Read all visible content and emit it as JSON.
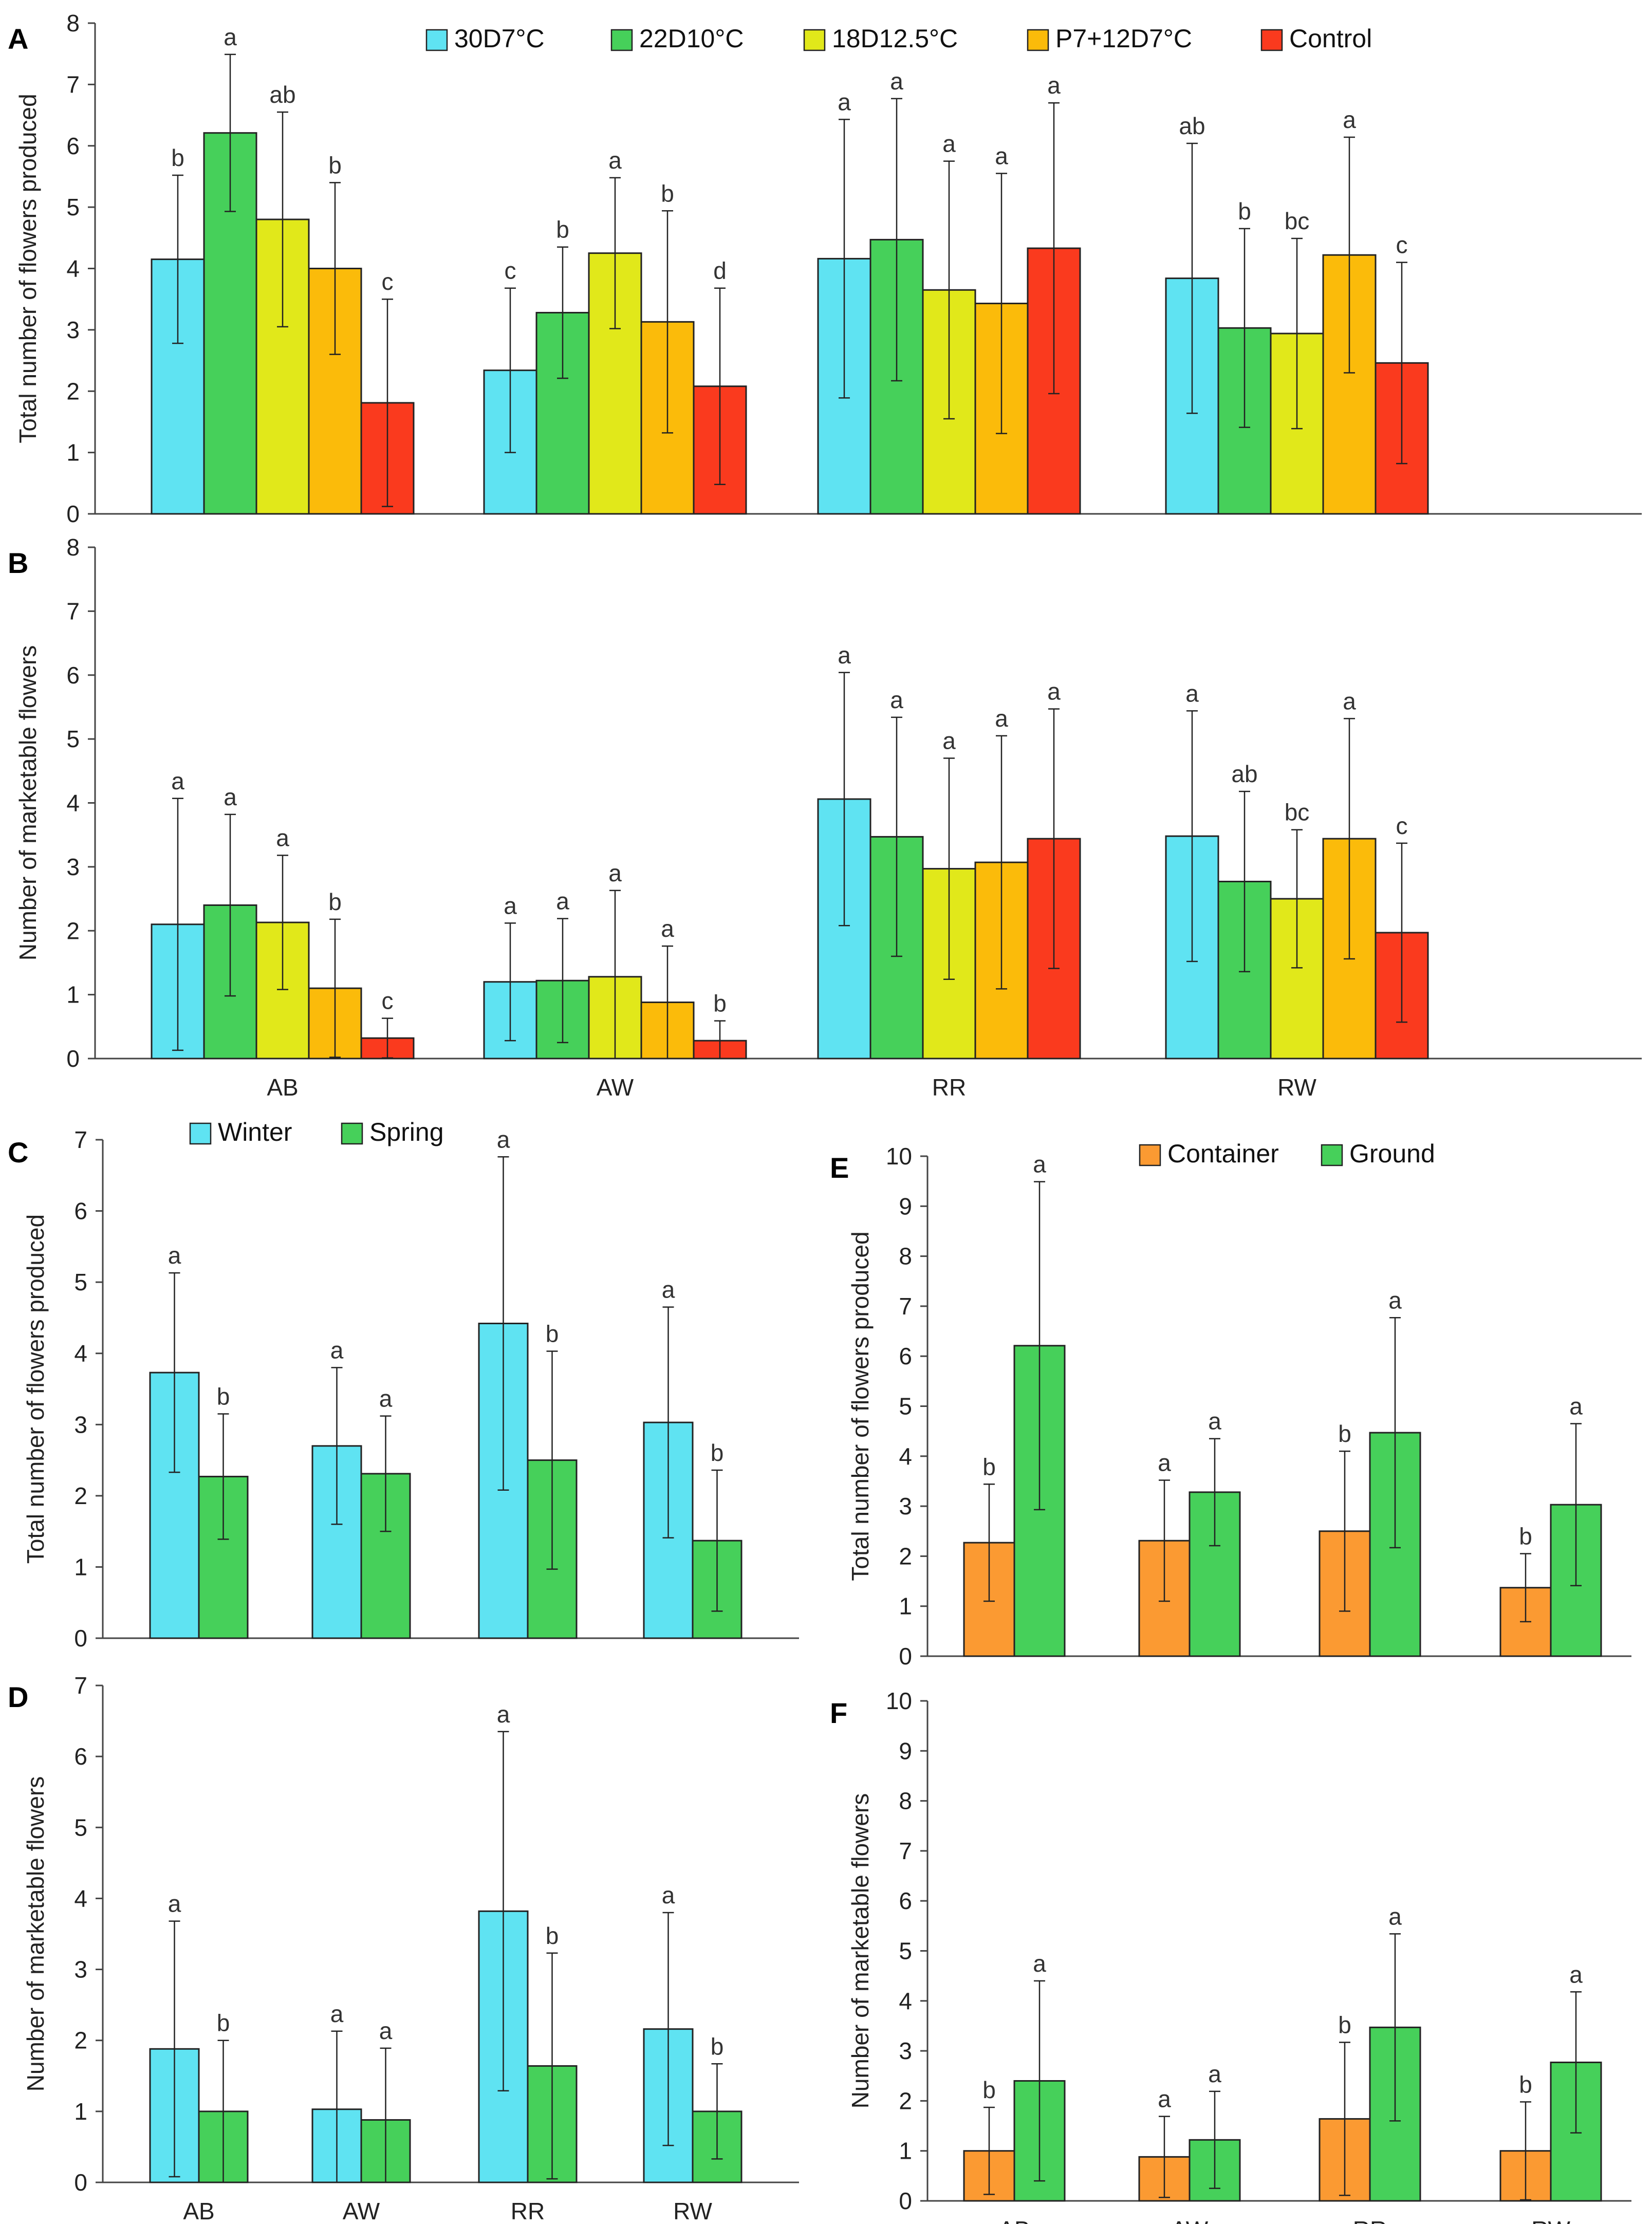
{
  "colors": {
    "30D7": "#5fe3f2",
    "22D10": "#46d05a",
    "18D12.5": "#e1e81a",
    "P7+12D7": "#fbbb0a",
    "Control": "#fa3a1e",
    "Winter": "#5fe3f2",
    "Spring": "#46d05a",
    "Container": "#fb9a32",
    "Ground": "#46d05a"
  },
  "chart_data": [
    {
      "panel": "A",
      "type": "bar",
      "ylabel": "Total number of flowers produced",
      "ylim": [
        0,
        8
      ],
      "yticks": [
        "0",
        "1",
        "2",
        "3",
        "4",
        "5",
        "6",
        "7",
        "8"
      ],
      "categories": [
        "AB",
        "AW",
        "RR",
        "RW"
      ],
      "show_xticklabels": false,
      "legend": "top",
      "series": [
        {
          "name": "30D7°C",
          "key": "30D7",
          "values": [
            4.15,
            2.34,
            4.16,
            3.84
          ],
          "err": [
            1.37,
            1.34,
            2.27,
            2.2
          ],
          "letters": [
            "b",
            "c",
            "a",
            "ab"
          ]
        },
        {
          "name": "22D10°C",
          "key": "22D10",
          "values": [
            6.21,
            3.28,
            4.47,
            3.03
          ],
          "err": [
            1.28,
            1.07,
            2.3,
            1.62
          ],
          "letters": [
            "a",
            "b",
            "a",
            "b"
          ]
        },
        {
          "name": "18D12.5°C",
          "key": "18D12.5",
          "values": [
            4.8,
            4.25,
            3.65,
            2.94
          ],
          "err": [
            1.75,
            1.23,
            2.1,
            1.55
          ],
          "letters": [
            "ab",
            "a",
            "a",
            "bc"
          ]
        },
        {
          "name": "P7+12D7°C",
          "key": "P7+12D7",
          "values": [
            4.0,
            3.13,
            3.43,
            4.22
          ],
          "err": [
            1.4,
            1.81,
            2.12,
            1.92
          ],
          "letters": [
            "b",
            "b",
            "a",
            "a"
          ]
        },
        {
          "name": "Control",
          "key": "Control",
          "values": [
            1.81,
            2.08,
            4.33,
            2.46
          ],
          "err": [
            1.69,
            1.6,
            2.37,
            1.64
          ],
          "letters": [
            "c",
            "d",
            "a",
            "c"
          ]
        }
      ]
    },
    {
      "panel": "B",
      "type": "bar",
      "ylabel": "Number of marketable flowers",
      "ylim": [
        0,
        8
      ],
      "yticks": [
        "0",
        "1",
        "2",
        "3",
        "4",
        "5",
        "6",
        "7",
        "8"
      ],
      "categories": [
        "AB",
        "AW",
        "RR",
        "RW"
      ],
      "show_xticklabels": true,
      "legend": "none",
      "series": [
        {
          "name": "30D7°C",
          "key": "30D7",
          "values": [
            2.1,
            1.2,
            4.06,
            3.48
          ],
          "err": [
            1.97,
            0.92,
            1.98,
            1.96
          ],
          "letters": [
            "a",
            "a",
            "a",
            "a"
          ]
        },
        {
          "name": "22D10°C",
          "key": "22D10",
          "values": [
            2.4,
            1.22,
            3.47,
            2.77
          ],
          "err": [
            1.42,
            0.97,
            1.87,
            1.41
          ],
          "letters": [
            "a",
            "a",
            "a",
            "ab"
          ]
        },
        {
          "name": "18D12.5°C",
          "key": "18D12.5",
          "values": [
            2.13,
            1.28,
            2.97,
            2.5
          ],
          "err": [
            1.05,
            1.35,
            1.73,
            1.08
          ],
          "letters": [
            "a",
            "a",
            "a",
            "bc"
          ]
        },
        {
          "name": "P7+12D7°C",
          "key": "P7+12D7",
          "values": [
            1.1,
            0.88,
            3.07,
            3.44
          ],
          "err": [
            1.08,
            0.88,
            1.98,
            1.88
          ],
          "letters": [
            "b",
            "a",
            "a",
            "a"
          ]
        },
        {
          "name": "Control",
          "key": "Control",
          "values": [
            0.32,
            0.28,
            3.44,
            1.97
          ],
          "err": [
            0.31,
            0.31,
            2.03,
            1.4
          ],
          "letters": [
            "c",
            "b",
            "a",
            "c"
          ]
        }
      ]
    },
    {
      "panel": "C",
      "type": "bar",
      "ylabel": "Total number of flowers produced",
      "ylim": [
        0,
        7
      ],
      "yticks": [
        "0",
        "1",
        "2",
        "3",
        "4",
        "5",
        "6",
        "7"
      ],
      "categories": [
        "AB",
        "AW",
        "RR",
        "RW"
      ],
      "show_xticklabels": false,
      "legend": "top",
      "series": [
        {
          "name": "Winter",
          "key": "Winter",
          "values": [
            3.73,
            2.7,
            4.42,
            3.03
          ],
          "err": [
            1.4,
            1.1,
            2.34,
            1.62
          ],
          "letters": [
            "a",
            "a",
            "a",
            "a"
          ]
        },
        {
          "name": "Spring",
          "key": "Spring",
          "values": [
            2.27,
            2.31,
            2.5,
            1.37
          ],
          "err": [
            0.88,
            0.81,
            1.53,
            0.99
          ],
          "letters": [
            "b",
            "a",
            "b",
            "b"
          ]
        }
      ]
    },
    {
      "panel": "D",
      "type": "bar",
      "ylabel": "Number of marketable flowers",
      "ylim": [
        0,
        7
      ],
      "yticks": [
        "0",
        "1",
        "2",
        "3",
        "4",
        "5",
        "6",
        "7"
      ],
      "categories": [
        "AB",
        "AW",
        "RR",
        "RW"
      ],
      "show_xticklabels": true,
      "legend": "none",
      "series": [
        {
          "name": "Winter",
          "key": "Winter",
          "values": [
            1.88,
            1.03,
            3.82,
            2.16
          ],
          "err": [
            1.8,
            1.1,
            2.53,
            1.64
          ],
          "letters": [
            "a",
            "a",
            "a",
            "a"
          ]
        },
        {
          "name": "Spring",
          "key": "Spring",
          "values": [
            1.0,
            0.88,
            1.64,
            1.0
          ],
          "err": [
            1.0,
            1.01,
            1.59,
            0.67
          ],
          "letters": [
            "b",
            "a",
            "b",
            "b"
          ]
        }
      ]
    },
    {
      "panel": "E",
      "type": "bar",
      "ylabel": "Total number of flowers produced",
      "ylim": [
        0,
        10
      ],
      "yticks": [
        "0",
        "1",
        "2",
        "3",
        "4",
        "5",
        "6",
        "7",
        "8",
        "9",
        "10"
      ],
      "categories": [
        "AB",
        "AW",
        "RR",
        "RW"
      ],
      "show_xticklabels": false,
      "legend": "top",
      "series": [
        {
          "name": "Container",
          "key": "Container",
          "values": [
            2.27,
            2.31,
            2.5,
            1.37
          ],
          "err": [
            1.17,
            1.21,
            1.6,
            0.68
          ],
          "letters": [
            "b",
            "a",
            "b",
            "b"
          ]
        },
        {
          "name": "Ground",
          "key": "Ground",
          "values": [
            6.21,
            3.28,
            4.47,
            3.03
          ],
          "err": [
            3.28,
            1.07,
            2.3,
            1.62
          ],
          "letters": [
            "a",
            "a",
            "a",
            "a"
          ]
        }
      ]
    },
    {
      "panel": "F",
      "type": "bar",
      "ylabel": "Number of marketable flowers",
      "ylim": [
        0,
        10
      ],
      "yticks": [
        "0",
        "1",
        "2",
        "3",
        "4",
        "5",
        "6",
        "7",
        "8",
        "9",
        "10"
      ],
      "categories": [
        "AB",
        "AW",
        "RR",
        "RW"
      ],
      "show_xticklabels": true,
      "legend": "none",
      "series": [
        {
          "name": "Container",
          "key": "Container",
          "values": [
            1.0,
            0.88,
            1.64,
            1.0
          ],
          "err": [
            0.87,
            0.81,
            1.53,
            0.98
          ],
          "letters": [
            "b",
            "a",
            "b",
            "b"
          ]
        },
        {
          "name": "Ground",
          "key": "Ground",
          "values": [
            2.4,
            1.22,
            3.47,
            2.77
          ],
          "err": [
            2.0,
            0.97,
            1.87,
            1.41
          ],
          "letters": [
            "a",
            "a",
            "a",
            "a"
          ]
        }
      ]
    }
  ]
}
